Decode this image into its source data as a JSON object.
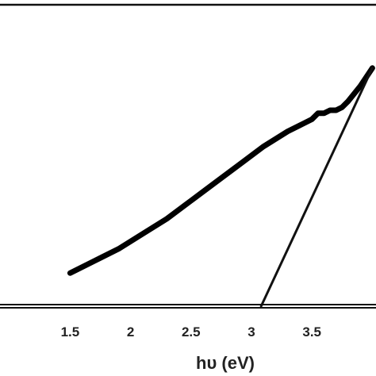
{
  "chart_data": {
    "type": "line",
    "title": "",
    "xlabel": "hυ (eV)",
    "ylabel": "",
    "xlim": [
      0.92,
      4.03
    ],
    "ylim": [
      0,
      1
    ],
    "x_ticks": [
      "1.5",
      "2",
      "2.5",
      "3",
      "3.5"
    ],
    "x_tick_values": [
      1.5,
      2,
      2.5,
      3,
      3.5
    ],
    "grid": false,
    "legend": "none",
    "series": [
      {
        "style": "thick-curve",
        "x": [
          1.5,
          1.7,
          1.9,
          2.1,
          2.3,
          2.5,
          2.7,
          2.9,
          3.1,
          3.3,
          3.4,
          3.5,
          3.55,
          3.6,
          3.65,
          3.7,
          3.75,
          3.8,
          3.9,
          4.0
        ],
        "y": [
          0.11,
          0.15,
          0.19,
          0.24,
          0.29,
          0.35,
          0.41,
          0.47,
          0.53,
          0.58,
          0.6,
          0.62,
          0.64,
          0.64,
          0.65,
          0.65,
          0.66,
          0.68,
          0.73,
          0.79
        ]
      },
      {
        "style": "tangent-line",
        "x": [
          3.08,
          4.0
        ],
        "y": [
          0.0,
          0.79
        ]
      }
    ],
    "colors": {
      "curve": "#000000",
      "tangent": "#111111",
      "axis": "#111111",
      "text": "#222222"
    }
  }
}
